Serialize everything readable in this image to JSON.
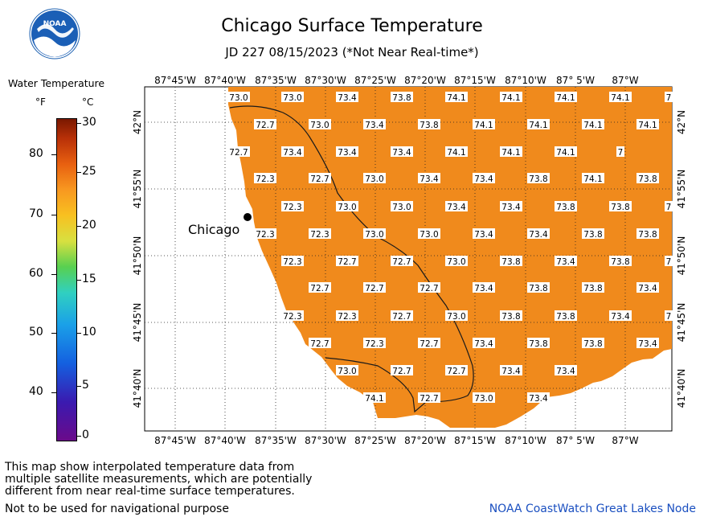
{
  "title": "Chicago Surface Temperature",
  "subtitle": "JD 227 08/15/2023 (*Not Near Real-time*)",
  "legend": {
    "title": "Water Temperature",
    "unit_f": "°F",
    "unit_c": "°C",
    "f_ticks": [
      "80",
      "70",
      "60",
      "50",
      "40"
    ],
    "c_ticks": [
      "30",
      "25",
      "20",
      "15",
      "10",
      "5",
      "0"
    ]
  },
  "map": {
    "lon_labels": [
      "87°45'W",
      "87°40'W",
      "87°35'W",
      "87°30'W",
      "87°25'W",
      "87°20'W",
      "87°15'W",
      "87°10'W",
      "87° 5'W",
      "87°W"
    ],
    "lat_labels": [
      "42°N",
      "41°55'N",
      "41°50'N",
      "41°45'N",
      "41°40'N"
    ],
    "city_label": "Chicago",
    "water_color": "#f08a1c",
    "land_color": "#ffffff",
    "temps": [
      [
        "73.0",
        "73.0",
        "73.4",
        "73.8",
        "74.1",
        "74.1",
        "74.1",
        "74.1",
        "7"
      ],
      [
        "72.7",
        "73.0",
        "73.4",
        "73.8",
        "74.1",
        "74.1",
        "74.1",
        "74.1"
      ],
      [
        "72.7",
        "73.4",
        "73.4",
        "73.4",
        "74.1",
        "74.1",
        "74.1",
        "7"
      ],
      [
        "72.3",
        "72.7",
        "73.0",
        "73.4",
        "73.4",
        "73.8",
        "74.1",
        "73.8"
      ],
      [
        "72.3",
        "73.0",
        "73.0",
        "73.4",
        "73.4",
        "73.8",
        "73.8",
        "7"
      ],
      [
        "72.3",
        "72.3",
        "73.0",
        "73.0",
        "73.4",
        "73.4",
        "73.8",
        "73.8"
      ],
      [
        "72.3",
        "72.7",
        "72.7",
        "73.0",
        "73.8",
        "73.4",
        "73.8",
        "7"
      ],
      [
        "72.7",
        "72.7",
        "72.7",
        "73.4",
        "73.8",
        "73.8",
        "73.4"
      ],
      [
        "72.3",
        "72.3",
        "72.7",
        "73.0",
        "73.8",
        "73.8",
        "73.4",
        "7"
      ],
      [
        "72.7",
        "72.3",
        "72.7",
        "73.4",
        "73.8",
        "73.8",
        "73.4"
      ],
      [
        "73.0",
        "72.7",
        "72.7",
        "73.4",
        "73.4"
      ],
      [
        "74.1",
        "72.7",
        "73.0",
        "73.4"
      ]
    ]
  },
  "footnote": "This map show interpolated temperature data from\nmultiple satellite measurements, which are potentially\ndifferent from near real-time surface temperatures.",
  "nav_note": "Not to be used for navigational purpose",
  "credit": "NOAA CoastWatch Great Lakes Node"
}
